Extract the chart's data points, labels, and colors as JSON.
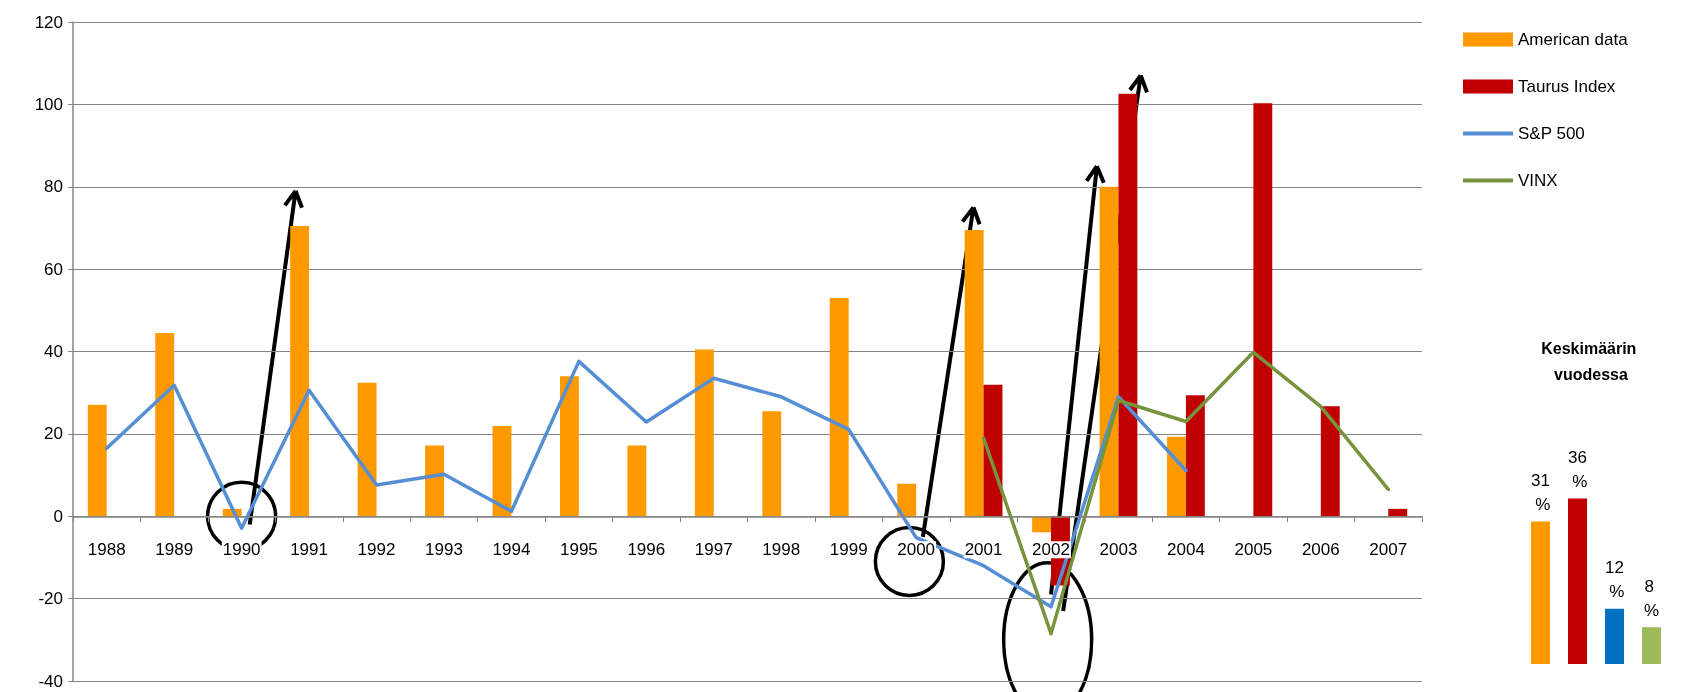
{
  "chart_data": [
    {
      "type": "bar",
      "categories": [
        "1988",
        "1989",
        "1990",
        "1991",
        "1992",
        "1993",
        "1994",
        "1995",
        "1996",
        "1997",
        "1998",
        "1999",
        "2000",
        "2001",
        "2002",
        "2003",
        "2004",
        "2005",
        "2006",
        "2007"
      ],
      "series": [
        {
          "name": "American data",
          "type": "bar",
          "color": "#ff9900",
          "values": [
            27.1,
            44.5,
            1.8,
            70.5,
            32.4,
            17.2,
            21.9,
            34,
            17.2,
            40.5,
            25.5,
            53,
            7.9,
            69.5,
            -3.9,
            80,
            19.3,
            null,
            null,
            null
          ]
        },
        {
          "name": "Taurus Index",
          "type": "bar",
          "color": "#c00000",
          "values": [
            null,
            null,
            null,
            null,
            null,
            null,
            null,
            null,
            null,
            null,
            null,
            null,
            null,
            31.9,
            -16.8,
            102.6,
            29.4,
            100.3,
            26.7,
            1.8
          ]
        },
        {
          "name": "S&P 500",
          "type": "line",
          "color": "#558ed5",
          "values": [
            16.5,
            31.8,
            -2.9,
            30.6,
            7.6,
            10.2,
            1.2,
            37.6,
            22.9,
            33.5,
            29,
            21.1,
            -5.2,
            -12,
            -22,
            29,
            11.1,
            null,
            null,
            null
          ]
        },
        {
          "name": "VINX",
          "type": "line",
          "color": "#77933c",
          "values": [
            null,
            null,
            null,
            null,
            null,
            null,
            null,
            null,
            null,
            null,
            null,
            null,
            null,
            19,
            -28.5,
            28.1,
            23,
            39.8,
            26.6,
            6.5
          ]
        }
      ],
      "ylim": [
        -40,
        120
      ],
      "yticks": [
        -40,
        -20,
        0,
        20,
        40,
        60,
        80,
        100,
        120
      ],
      "grid": "y",
      "legend": "top right",
      "marker": "none",
      "line_style": "solid"
    },
    {
      "type": "bar",
      "title": "Keskimäärin vuodessa",
      "categories": [
        null,
        null,
        null,
        null
      ],
      "values": [
        31,
        36,
        12,
        8
      ],
      "colors": [
        "#ff9900",
        "#c00000",
        "#0070c0",
        "#9bbb59"
      ],
      "value_labels": [
        "31 %",
        "36 %",
        "12 %",
        "8 %"
      ]
    }
  ]
}
